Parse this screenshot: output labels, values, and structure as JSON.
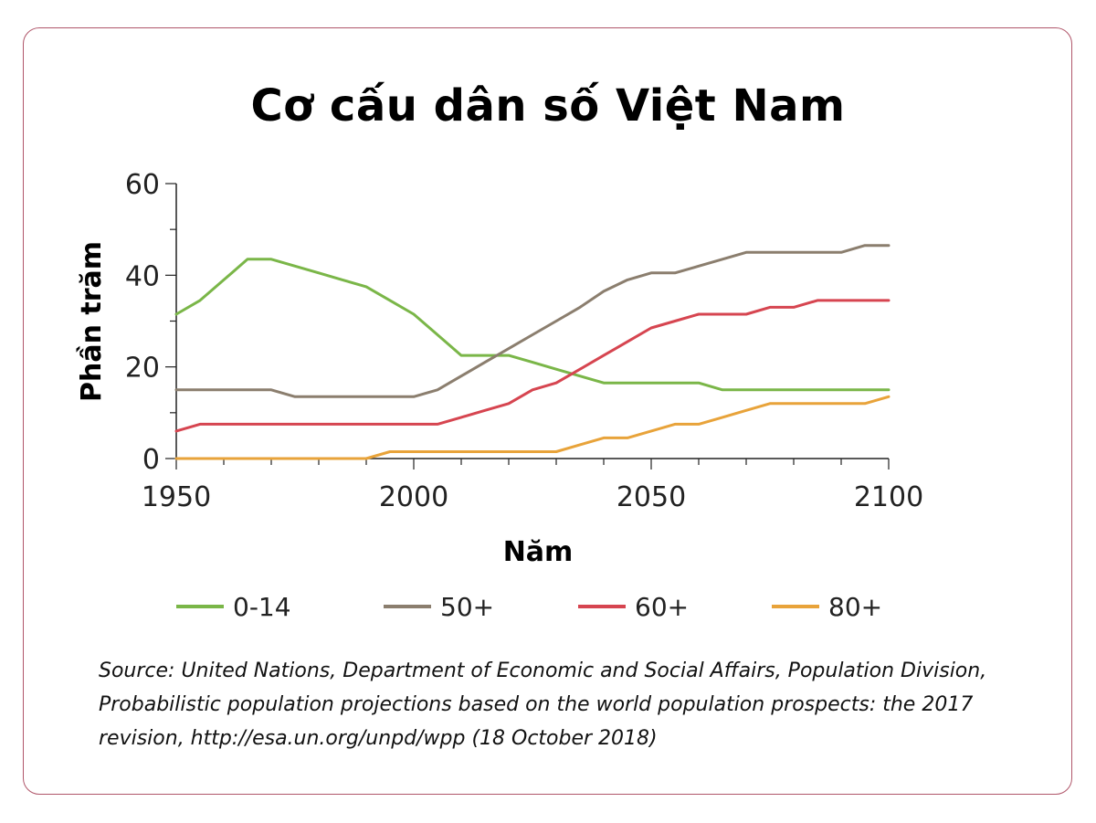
{
  "title": "Cơ cấu dân số Việt Nam",
  "source_text": "Source: United Nations, Department of Economic and Social Affairs, Population Division,\nProbabilistic population projections based on the world population prospects: the 2017\nrevision, http://esa.un.org/unpd/wpp (18 October 2018)",
  "chart_data": {
    "type": "line",
    "title": "Cơ cấu dân số Việt Nam",
    "xlabel": "Năm",
    "ylabel": "Phần trăm",
    "xlim": [
      1950,
      2100
    ],
    "ylim": [
      0,
      60
    ],
    "x_ticks": [
      1950,
      2000,
      2050,
      2100
    ],
    "y_ticks": [
      0,
      20,
      40,
      60
    ],
    "grid": false,
    "legend_position": "bottom",
    "series": [
      {
        "name": "0-14",
        "color": "#7ab648",
        "x": [
          1950,
          1955,
          1960,
          1965,
          1970,
          1975,
          1980,
          1985,
          1990,
          1995,
          2000,
          2005,
          2010,
          2015,
          2020,
          2025,
          2030,
          2035,
          2040,
          2045,
          2050,
          2055,
          2060,
          2065,
          2070,
          2075,
          2080,
          2085,
          2090,
          2095,
          2100
        ],
        "y": [
          31.5,
          34.5,
          39,
          43.5,
          43.5,
          42,
          40.5,
          39,
          37.5,
          34.5,
          31.5,
          27,
          22.5,
          22.5,
          22.5,
          21,
          19.5,
          18,
          16.5,
          16.5,
          16.5,
          16.5,
          16.5,
          15,
          15,
          15,
          15,
          15,
          15,
          15,
          15
        ]
      },
      {
        "name": "50+",
        "color": "#8b7e6e",
        "x": [
          1950,
          1955,
          1960,
          1965,
          1970,
          1975,
          1980,
          1985,
          1990,
          1995,
          2000,
          2005,
          2010,
          2015,
          2020,
          2025,
          2030,
          2035,
          2040,
          2045,
          2050,
          2055,
          2060,
          2065,
          2070,
          2075,
          2080,
          2085,
          2090,
          2095,
          2100
        ],
        "y": [
          15,
          15,
          15,
          15,
          15,
          13.5,
          13.5,
          13.5,
          13.5,
          13.5,
          13.5,
          15,
          18,
          21,
          24,
          27,
          30,
          33,
          36.5,
          39,
          40.5,
          40.5,
          42,
          43.5,
          45,
          45,
          45,
          45,
          45,
          46.5,
          46.5
        ]
      },
      {
        "name": "60+",
        "color": "#d64550",
        "x": [
          1950,
          1955,
          1960,
          1965,
          1970,
          1975,
          1980,
          1985,
          1990,
          1995,
          2000,
          2005,
          2010,
          2015,
          2020,
          2025,
          2030,
          2035,
          2040,
          2045,
          2050,
          2055,
          2060,
          2065,
          2070,
          2075,
          2080,
          2085,
          2090,
          2095,
          2100
        ],
        "y": [
          6,
          7.5,
          7.5,
          7.5,
          7.5,
          7.5,
          7.5,
          7.5,
          7.5,
          7.5,
          7.5,
          7.5,
          9,
          10.5,
          12,
          15,
          16.5,
          19.5,
          22.5,
          25.5,
          28.5,
          30,
          31.5,
          31.5,
          31.5,
          33,
          33,
          34.5,
          34.5,
          34.5,
          34.5
        ]
      },
      {
        "name": "80+",
        "color": "#e8a33a",
        "x": [
          1950,
          1955,
          1960,
          1965,
          1970,
          1975,
          1980,
          1985,
          1990,
          1995,
          2000,
          2005,
          2010,
          2015,
          2020,
          2025,
          2030,
          2035,
          2040,
          2045,
          2050,
          2055,
          2060,
          2065,
          2070,
          2075,
          2080,
          2085,
          2090,
          2095,
          2100
        ],
        "y": [
          0,
          0,
          0,
          0,
          0,
          0,
          0,
          0,
          0,
          1.5,
          1.5,
          1.5,
          1.5,
          1.5,
          1.5,
          1.5,
          1.5,
          3,
          4.5,
          4.5,
          6,
          7.5,
          7.5,
          9,
          10.5,
          12,
          12,
          12,
          12,
          12,
          13.5
        ]
      }
    ]
  }
}
